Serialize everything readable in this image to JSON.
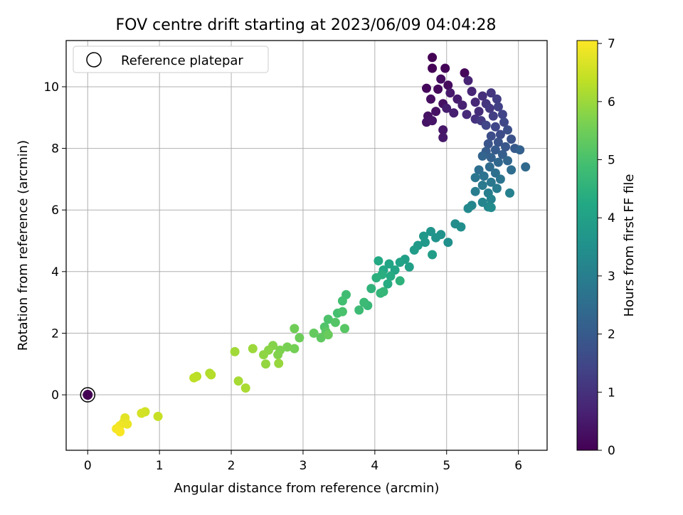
{
  "chart_data": {
    "type": "scatter",
    "title": "FOV centre drift starting at 2023/06/09 04:04:28",
    "xlabel": "Angular distance from reference (arcmin)",
    "ylabel": "Rotation from reference (arcmin)",
    "xlim": [
      -0.3,
      6.4
    ],
    "ylim": [
      -1.8,
      11.5
    ],
    "xticks": [
      "0",
      "1",
      "2",
      "3",
      "4",
      "5",
      "6"
    ],
    "yticks": [
      "0",
      "2",
      "4",
      "6",
      "8",
      "10"
    ],
    "grid": true,
    "legend": {
      "position": "top-left",
      "entry": "Reference platepar"
    },
    "reference_point": {
      "x": 0,
      "y": 0
    },
    "colorbar": {
      "label": "Hours from first FF file",
      "range": [
        0,
        7.05
      ],
      "ticks": [
        "0",
        "1",
        "2",
        "3",
        "4",
        "5",
        "6",
        "7"
      ],
      "colormap": "viridis"
    },
    "point_series_columns": [
      "x_arcmin",
      "y_arcmin",
      "hours"
    ],
    "points": [
      [
        4.8,
        10.95,
        0.02
      ],
      [
        4.8,
        10.6,
        0.05
      ],
      [
        4.98,
        10.6,
        0.08
      ],
      [
        5.25,
        10.45,
        0.12
      ],
      [
        4.72,
        9.95,
        0.15
      ],
      [
        4.88,
        9.92,
        0.18
      ],
      [
        5.02,
        10.05,
        0.2
      ],
      [
        4.92,
        10.25,
        0.25
      ],
      [
        4.78,
        9.6,
        0.28
      ],
      [
        4.95,
        9.45,
        0.3
      ],
      [
        4.85,
        9.2,
        0.33
      ],
      [
        4.74,
        9.05,
        0.35
      ],
      [
        4.72,
        8.85,
        0.38
      ],
      [
        4.8,
        8.9,
        0.4
      ],
      [
        4.95,
        8.6,
        0.45
      ],
      [
        4.95,
        8.35,
        0.48
      ],
      [
        5.05,
        9.8,
        0.5
      ],
      [
        5.15,
        9.6,
        0.55
      ],
      [
        5.0,
        9.3,
        0.58
      ],
      [
        5.1,
        9.15,
        0.6
      ],
      [
        5.22,
        9.4,
        0.65
      ],
      [
        5.3,
        10.2,
        0.7
      ],
      [
        5.35,
        9.85,
        0.75
      ],
      [
        5.4,
        9.5,
        0.8
      ],
      [
        5.28,
        9.1,
        0.85
      ],
      [
        5.45,
        9.2,
        0.9
      ],
      [
        5.5,
        9.7,
        0.95
      ],
      [
        5.4,
        8.95,
        1.0
      ],
      [
        5.55,
        9.45,
        1.05
      ],
      [
        5.62,
        9.8,
        1.1
      ],
      [
        5.6,
        9.3,
        1.15
      ],
      [
        5.48,
        8.9,
        1.2
      ],
      [
        5.7,
        9.6,
        1.25
      ],
      [
        5.65,
        9.05,
        1.3
      ],
      [
        5.72,
        9.35,
        1.35
      ],
      [
        5.78,
        9.1,
        1.4
      ],
      [
        5.55,
        8.75,
        1.45
      ],
      [
        5.68,
        8.7,
        1.5
      ],
      [
        5.8,
        8.85,
        1.55
      ],
      [
        5.75,
        8.45,
        1.6
      ],
      [
        5.62,
        8.4,
        1.65
      ],
      [
        5.85,
        8.6,
        1.7
      ],
      [
        5.9,
        8.3,
        1.75
      ],
      [
        5.72,
        8.2,
        1.8
      ],
      [
        5.58,
        8.15,
        1.85
      ],
      [
        5.82,
        8.05,
        1.9
      ],
      [
        5.95,
        8.0,
        1.95
      ],
      [
        5.68,
        7.95,
        2.0
      ],
      [
        5.55,
        7.9,
        2.05
      ],
      [
        5.78,
        7.8,
        2.1
      ],
      [
        6.02,
        7.95,
        2.15
      ],
      [
        5.62,
        7.7,
        2.2
      ],
      [
        5.5,
        7.75,
        2.25
      ],
      [
        5.85,
        7.6,
        2.3
      ],
      [
        5.72,
        7.55,
        2.35
      ],
      [
        6.1,
        7.4,
        2.4
      ],
      [
        5.6,
        7.4,
        2.45
      ],
      [
        5.9,
        7.3,
        2.5
      ],
      [
        5.45,
        7.3,
        2.55
      ],
      [
        5.68,
        7.2,
        2.6
      ],
      [
        5.52,
        7.1,
        2.65
      ],
      [
        5.75,
        7.0,
        2.7
      ],
      [
        5.4,
        7.05,
        2.75
      ],
      [
        5.62,
        6.9,
        2.8
      ],
      [
        5.5,
        6.8,
        2.85
      ],
      [
        5.7,
        6.7,
        2.9
      ],
      [
        5.4,
        6.6,
        2.95
      ],
      [
        5.58,
        6.55,
        3.0
      ],
      [
        5.88,
        6.55,
        3.05
      ],
      [
        5.62,
        6.35,
        3.1
      ],
      [
        5.5,
        6.25,
        3.15
      ],
      [
        5.35,
        6.15,
        3.2
      ],
      [
        5.58,
        6.1,
        3.25
      ],
      [
        5.3,
        6.05,
        3.3
      ],
      [
        5.62,
        6.08,
        3.35
      ],
      [
        5.12,
        5.55,
        3.4
      ],
      [
        5.2,
        5.45,
        3.45
      ],
      [
        5.02,
        4.95,
        3.5
      ],
      [
        4.92,
        5.2,
        3.55
      ],
      [
        4.85,
        5.1,
        3.6
      ],
      [
        4.78,
        5.3,
        3.65
      ],
      [
        4.68,
        5.15,
        3.7
      ],
      [
        4.7,
        4.95,
        3.75
      ],
      [
        4.6,
        4.85,
        3.8
      ],
      [
        4.55,
        4.7,
        3.85
      ],
      [
        4.8,
        4.55,
        3.9
      ],
      [
        4.42,
        4.4,
        3.95
      ],
      [
        4.48,
        4.15,
        4.0
      ],
      [
        4.35,
        4.3,
        4.05
      ],
      [
        4.28,
        4.05,
        4.1
      ],
      [
        4.2,
        4.25,
        4.15
      ],
      [
        4.12,
        4.05,
        4.2
      ],
      [
        4.05,
        4.35,
        4.25
      ],
      [
        4.22,
        3.85,
        4.3
      ],
      [
        4.18,
        3.6,
        4.35
      ],
      [
        4.1,
        3.9,
        4.4
      ],
      [
        4.02,
        3.8,
        4.45
      ],
      [
        4.35,
        3.7,
        4.5
      ],
      [
        3.95,
        3.45,
        4.55
      ],
      [
        4.08,
        3.3,
        4.6
      ],
      [
        4.12,
        3.35,
        4.65
      ],
      [
        3.9,
        2.9,
        4.7
      ],
      [
        3.85,
        3.0,
        4.75
      ],
      [
        3.78,
        2.75,
        4.8
      ],
      [
        3.6,
        3.25,
        4.85
      ],
      [
        3.55,
        3.05,
        4.9
      ],
      [
        3.48,
        2.65,
        4.95
      ],
      [
        3.55,
        2.7,
        5.0
      ],
      [
        3.35,
        2.45,
        5.05
      ],
      [
        3.3,
        2.2,
        5.1
      ],
      [
        3.45,
        2.35,
        5.15
      ],
      [
        3.58,
        2.15,
        5.2
      ],
      [
        3.32,
        2.05,
        5.25
      ],
      [
        3.25,
        1.85,
        5.3
      ],
      [
        3.15,
        2.0,
        5.35
      ],
      [
        3.35,
        1.95,
        5.4
      ],
      [
        2.95,
        1.85,
        5.45
      ],
      [
        2.88,
        2.15,
        5.5
      ],
      [
        2.88,
        1.5,
        5.55
      ],
      [
        2.78,
        1.55,
        5.6
      ],
      [
        2.68,
        1.45,
        5.65
      ],
      [
        2.65,
        1.3,
        5.7
      ],
      [
        2.58,
        1.6,
        5.75
      ],
      [
        2.52,
        1.45,
        5.8
      ],
      [
        2.45,
        1.3,
        5.85
      ],
      [
        2.48,
        1.0,
        5.9
      ],
      [
        2.66,
        1.02,
        5.95
      ],
      [
        2.3,
        1.5,
        6.0
      ],
      [
        2.05,
        1.4,
        6.05
      ],
      [
        2.1,
        0.45,
        6.1
      ],
      [
        2.2,
        0.22,
        6.15
      ],
      [
        1.7,
        0.7,
        6.2
      ],
      [
        1.72,
        0.65,
        6.25
      ],
      [
        1.52,
        0.6,
        6.3
      ],
      [
        1.48,
        0.55,
        6.35
      ],
      [
        0.98,
        -0.7,
        6.45
      ],
      [
        0.8,
        -0.55,
        6.55
      ],
      [
        0.75,
        -0.6,
        6.6
      ],
      [
        0.52,
        -0.75,
        6.75
      ],
      [
        0.5,
        -0.9,
        6.8
      ],
      [
        0.55,
        -0.95,
        6.85
      ],
      [
        0.45,
        -1.0,
        6.9
      ],
      [
        0.4,
        -1.1,
        6.95
      ],
      [
        0.45,
        -1.2,
        7.0
      ]
    ]
  }
}
